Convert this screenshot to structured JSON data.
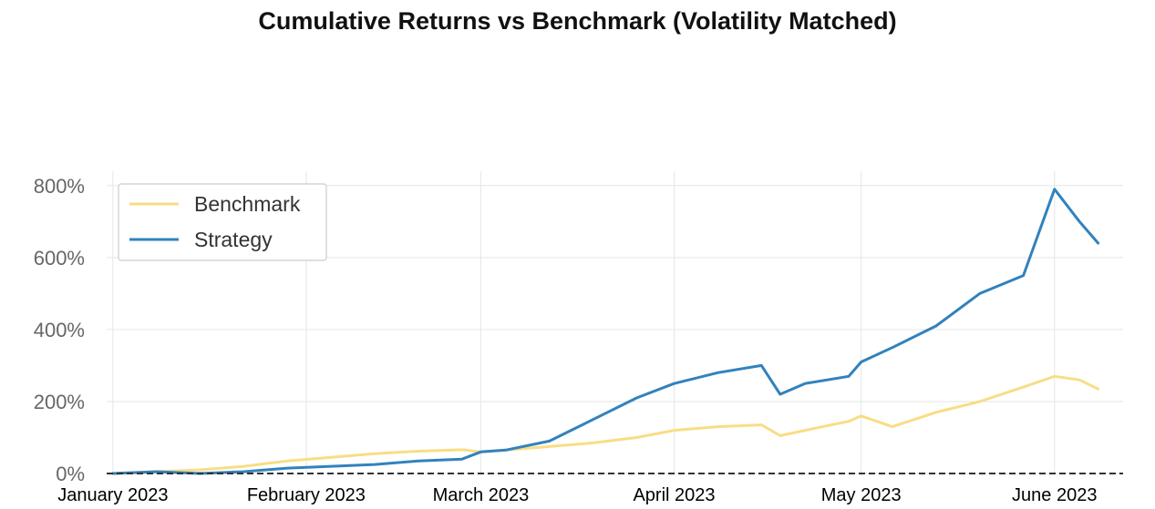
{
  "chart_data": {
    "type": "line",
    "title": "Cumulative Returns vs Benchmark (Volatility Matched)",
    "xlabel": "",
    "ylabel": "",
    "x_ticks": [
      "January 2023",
      "February 2023",
      "March 2023",
      "April 2023",
      "May 2023",
      "June 2023"
    ],
    "y_ticks": [
      "0%",
      "200%",
      "400%",
      "600%",
      "800%"
    ],
    "ylim": [
      0,
      800
    ],
    "grid": true,
    "legend_position": "top-left",
    "x": [
      "2023-01-01",
      "2023-01-08",
      "2023-01-15",
      "2023-01-22",
      "2023-01-29",
      "2023-02-05",
      "2023-02-12",
      "2023-02-19",
      "2023-02-26",
      "2023-03-01",
      "2023-03-05",
      "2023-03-12",
      "2023-03-19",
      "2023-03-26",
      "2023-04-01",
      "2023-04-08",
      "2023-04-15",
      "2023-04-18",
      "2023-04-22",
      "2023-04-29",
      "2023-05-01",
      "2023-05-06",
      "2023-05-13",
      "2023-05-20",
      "2023-05-27",
      "2023-06-01",
      "2023-06-05",
      "2023-06-08"
    ],
    "series": [
      {
        "name": "Benchmark",
        "color": "#f9dd85",
        "values": [
          0,
          5,
          10,
          20,
          35,
          45,
          55,
          62,
          66,
          60,
          65,
          75,
          85,
          100,
          120,
          130,
          135,
          105,
          120,
          145,
          160,
          130,
          170,
          200,
          240,
          270,
          260,
          235
        ]
      },
      {
        "name": "Strategy",
        "color": "#3182bd",
        "values": [
          0,
          5,
          0,
          5,
          15,
          20,
          25,
          35,
          40,
          60,
          65,
          90,
          150,
          210,
          250,
          280,
          300,
          220,
          250,
          270,
          310,
          350,
          410,
          500,
          550,
          790,
          700,
          640
        ]
      }
    ]
  }
}
